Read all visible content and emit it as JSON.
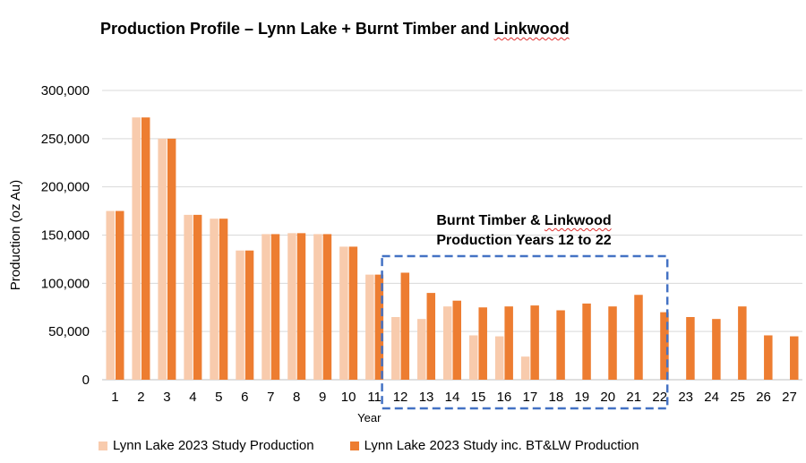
{
  "title": {
    "prefix": "Production Profile – Lynn Lake + Burnt Timber and ",
    "underlined": "Linkwood"
  },
  "annotation": {
    "line1_prefix": "Burnt Timber & ",
    "line1_underlined": "Linkwood",
    "line2": "Production Years 12 to 22"
  },
  "colors": {
    "series1": "#F8CBAD",
    "series2": "#ED7D31",
    "box": "#4472C4",
    "grid": "#D9D9D9"
  },
  "chart_data": {
    "type": "bar",
    "title": "Production Profile – Lynn Lake + Burnt Timber and Linkwood",
    "xlabel": "Year",
    "ylabel": "Production (oz Au)",
    "ylim": [
      0,
      300000
    ],
    "yticks": [
      "0",
      "50,000",
      "100,000",
      "150,000",
      "200,000",
      "250,000",
      "300,000"
    ],
    "categories": [
      "1",
      "2",
      "3",
      "4",
      "5",
      "6",
      "7",
      "8",
      "9",
      "10",
      "11",
      "12",
      "13",
      "14",
      "15",
      "16",
      "17",
      "18",
      "19",
      "20",
      "21",
      "22",
      "23",
      "24",
      "25",
      "26",
      "27"
    ],
    "series": [
      {
        "name": "Lynn Lake 2023 Study Production",
        "values": [
          175000,
          272000,
          250000,
          171000,
          167000,
          134000,
          151000,
          152000,
          151000,
          138000,
          109000,
          65000,
          63000,
          76000,
          46000,
          45000,
          24000,
          0,
          0,
          0,
          0,
          0,
          0,
          0,
          0,
          0,
          0
        ]
      },
      {
        "name": "Lynn Lake 2023 Study inc. BT&LW Production",
        "values": [
          175000,
          272000,
          250000,
          171000,
          167000,
          134000,
          151000,
          152000,
          151000,
          138000,
          109000,
          111000,
          90000,
          82000,
          75000,
          76000,
          77000,
          72000,
          79000,
          76000,
          88000,
          70000,
          65000,
          63000,
          76000,
          46000,
          45000
        ]
      }
    ],
    "legend_position": "bottom",
    "grid": true,
    "highlight": {
      "from_category": "12",
      "to_category": "22",
      "style": "dashed box"
    }
  }
}
